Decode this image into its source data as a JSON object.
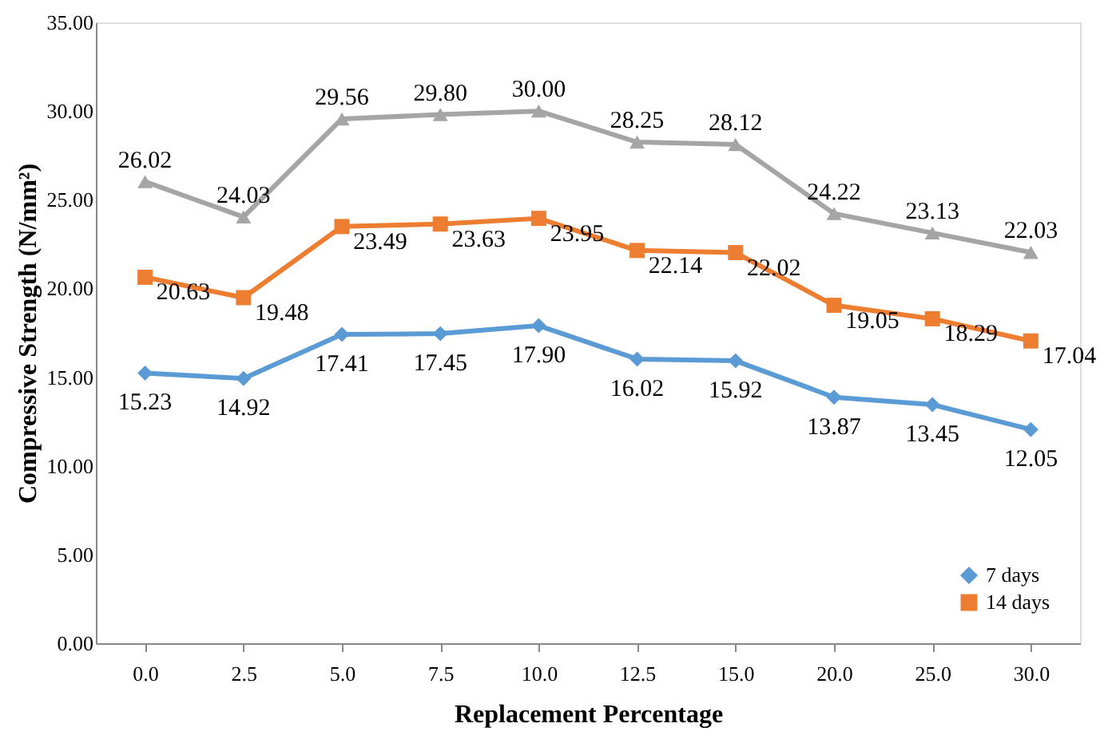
{
  "chart_data": {
    "type": "line",
    "xlabel": "Replacement Percentage",
    "ylabel": "Compressive Strength (N/mm²)",
    "categories": [
      "0.0",
      "2.5",
      "5.0",
      "7.5",
      "10.0",
      "12.5",
      "15.0",
      "20.0",
      "25.0",
      "30.0"
    ],
    "series": [
      {
        "name": "7 days",
        "color": "#5b9bd5",
        "marker": "diamond",
        "values": [
          15.23,
          14.92,
          17.41,
          17.45,
          17.9,
          16.02,
          15.92,
          13.87,
          13.45,
          12.05
        ],
        "value_labels": [
          "15.23",
          "14.92",
          "17.41",
          "17.45",
          "17.90",
          "16.02",
          "15.92",
          "13.87",
          "13.45",
          "12.05"
        ]
      },
      {
        "name": "14 days",
        "color": "#ed7d31",
        "marker": "square",
        "values": [
          20.63,
          19.48,
          23.49,
          23.63,
          23.95,
          22.14,
          22.02,
          19.05,
          18.29,
          17.04
        ],
        "value_labels": [
          "20.63",
          "19.48",
          "23.49",
          "23.63",
          "23.95",
          "22.14",
          "22.02",
          "19.05",
          "18.29",
          "17.04"
        ]
      },
      {
        "color": "#a5a5a5",
        "marker": "triangle",
        "values": [
          26.02,
          24.03,
          29.56,
          29.8,
          30.0,
          28.25,
          28.12,
          24.22,
          23.13,
          22.03
        ],
        "value_labels": [
          "26.02",
          "24.03",
          "29.56",
          "29.80",
          "30.00",
          "28.25",
          "28.12",
          "24.22",
          "23.13",
          "22.03"
        ]
      }
    ],
    "ylim": [
      0,
      35
    ],
    "yticks": [
      {
        "value": 0,
        "label": "0.00"
      },
      {
        "value": 5,
        "label": "5.00"
      },
      {
        "value": 10,
        "label": "10.00"
      },
      {
        "value": 15,
        "label": "15.00"
      },
      {
        "value": 20,
        "label": "20.00"
      },
      {
        "value": 25,
        "label": "25.00"
      },
      {
        "value": 30,
        "label": "30.00"
      },
      {
        "value": 35,
        "label": "35.00"
      }
    ],
    "grid": false,
    "legend": "bottom right",
    "line_style": "solid"
  }
}
